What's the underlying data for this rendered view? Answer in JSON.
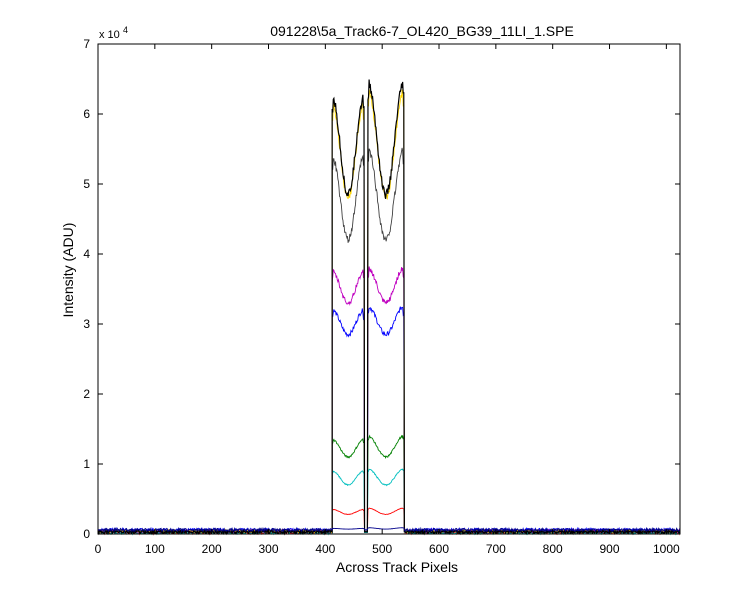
{
  "chart_data": {
    "type": "line",
    "title": "091228\\5a_Track6-7_OL420_BG39_11LI_1.SPE",
    "xlabel": "Across Track Pixels",
    "ylabel": "Intensity (ADU)",
    "xlim": [
      0,
      1024
    ],
    "ylim": [
      0,
      70000
    ],
    "y_exponent_label": "x 10",
    "y_exponent_power": "4",
    "x_ticks": [
      0,
      100,
      200,
      300,
      400,
      500,
      600,
      700,
      800,
      900,
      1000
    ],
    "y_ticks": [
      0,
      10000,
      20000,
      30000,
      40000,
      50000,
      60000,
      70000
    ],
    "y_tick_labels": [
      "0",
      "1",
      "2",
      "3",
      "4",
      "5",
      "6",
      "7"
    ],
    "grid": false,
    "profile": {
      "segment1": [
        412,
        468
      ],
      "segment2": [
        475,
        538
      ],
      "shape": [
        1.0,
        0.88,
        0.78,
        0.78,
        0.88,
        1.0,
        0.92,
        0.82,
        0.74,
        0.74,
        0.86,
        1.0
      ]
    },
    "series": [
      {
        "color": "#0000ff",
        "baseline": 600,
        "peak1": 32000,
        "peak2": 32500,
        "dip": 28500
      },
      {
        "color": "#008000",
        "baseline": 300,
        "peak1": 13500,
        "peak2": 14000,
        "dip": 11000
      },
      {
        "color": "#ff0000",
        "baseline": 200,
        "peak1": 3500,
        "peak2": 3700,
        "dip": 2800
      },
      {
        "color": "#00bfbf",
        "baseline": 200,
        "peak1": 9000,
        "peak2": 9300,
        "dip": 7000
      },
      {
        "color": "#bf00bf",
        "baseline": 400,
        "peak1": 37500,
        "peak2": 38000,
        "dip": 33000
      },
      {
        "color": "#ffd700",
        "baseline": 400,
        "peak1": 61500,
        "peak2": 63500,
        "dip": 48000
      },
      {
        "color": "#404040",
        "baseline": 400,
        "peak1": 54000,
        "peak2": 55000,
        "dip": 42000
      },
      {
        "color": "#000000",
        "baseline": 300,
        "peak1": 62500,
        "peak2": 64500,
        "dip": 48500
      },
      {
        "color": "#00008b",
        "baseline": 600,
        "peak1": 800,
        "peak2": 900,
        "dip": 700
      }
    ]
  }
}
